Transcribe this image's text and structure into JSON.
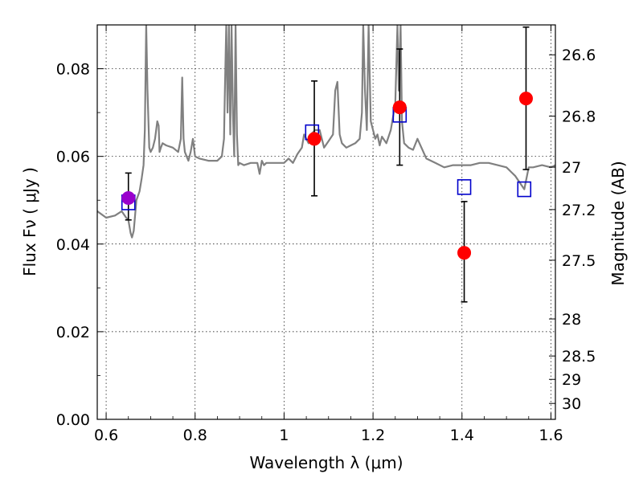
{
  "chart_data": {
    "type": "scatter",
    "title": "",
    "xlabel": "Wavelength  λ (μm)",
    "ylabel": "Flux  Fν  ( μJy )",
    "ylabel_right": "Magnitude (AB)",
    "xlim": [
      0.58,
      1.61
    ],
    "ylim": [
      0.0,
      0.09
    ],
    "grid": true,
    "x_ticks": [
      0.6,
      0.8,
      1.0,
      1.2,
      1.4,
      1.6
    ],
    "x_tick_labels": [
      "0.6",
      "0.8",
      "1",
      "1.2",
      "1.4",
      "1.6"
    ],
    "y_ticks": [
      0.0,
      0.02,
      0.04,
      0.06,
      0.08
    ],
    "y_tick_labels": [
      "0.00",
      "0.02",
      "0.04",
      "0.06",
      "0.08"
    ],
    "right_ticks": [
      {
        "mag": 26.6,
        "label": "26.6"
      },
      {
        "mag": 26.8,
        "label": "26.8"
      },
      {
        "mag": 27.0,
        "label": "27"
      },
      {
        "mag": 27.2,
        "label": "27.2"
      },
      {
        "mag": 27.5,
        "label": "27.5"
      },
      {
        "mag": 28.0,
        "label": "28"
      },
      {
        "mag": 28.5,
        "label": "28.5"
      },
      {
        "mag": 29.0,
        "label": "29"
      },
      {
        "mag": 30.0,
        "label": "30"
      }
    ],
    "colors": {
      "observed": "#ff0000",
      "model_box": "#0000cc",
      "spectrum": "#808080",
      "overlap": "#9900cc"
    },
    "series": [
      {
        "kind": "spectrum",
        "x": [
          0.58,
          0.6,
          0.62,
          0.635,
          0.645,
          0.65,
          0.655,
          0.658,
          0.662,
          0.668,
          0.675,
          0.68,
          0.684,
          0.687,
          0.69,
          0.693,
          0.697,
          0.7,
          0.705,
          0.71,
          0.715,
          0.718,
          0.72,
          0.723,
          0.727,
          0.735,
          0.75,
          0.762,
          0.768,
          0.771,
          0.774,
          0.777,
          0.785,
          0.79,
          0.795,
          0.8,
          0.81,
          0.83,
          0.85,
          0.86,
          0.865,
          0.867,
          0.87,
          0.873,
          0.876,
          0.879,
          0.882,
          0.885,
          0.888,
          0.891,
          0.894,
          0.897,
          0.9,
          0.91,
          0.925,
          0.94,
          0.945,
          0.95,
          0.955,
          0.96,
          0.98,
          1.0,
          1.01,
          1.02,
          1.03,
          1.04,
          1.045,
          1.05,
          1.055,
          1.06,
          1.07,
          1.08,
          1.09,
          1.1,
          1.11,
          1.115,
          1.12,
          1.125,
          1.13,
          1.14,
          1.15,
          1.16,
          1.17,
          1.175,
          1.178,
          1.182,
          1.186,
          1.19,
          1.195,
          1.2,
          1.205,
          1.21,
          1.215,
          1.22,
          1.23,
          1.24,
          1.25,
          1.255,
          1.258,
          1.262,
          1.265,
          1.27,
          1.28,
          1.29,
          1.3,
          1.32,
          1.34,
          1.36,
          1.38,
          1.4,
          1.42,
          1.44,
          1.46,
          1.48,
          1.5,
          1.52,
          1.53,
          1.54,
          1.55,
          1.56,
          1.58,
          1.6,
          1.61
        ],
        "y": [
          0.0475,
          0.046,
          0.0465,
          0.0475,
          0.046,
          0.0455,
          0.0425,
          0.0415,
          0.043,
          0.05,
          0.052,
          0.055,
          0.058,
          0.066,
          0.09,
          0.075,
          0.062,
          0.061,
          0.062,
          0.064,
          0.068,
          0.067,
          0.061,
          0.062,
          0.063,
          0.0625,
          0.062,
          0.061,
          0.064,
          0.078,
          0.064,
          0.061,
          0.059,
          0.061,
          0.064,
          0.06,
          0.0595,
          0.059,
          0.059,
          0.06,
          0.064,
          0.075,
          0.09,
          0.07,
          0.09,
          0.065,
          0.09,
          0.07,
          0.06,
          0.09,
          0.065,
          0.058,
          0.0585,
          0.058,
          0.0585,
          0.0585,
          0.056,
          0.059,
          0.058,
          0.0585,
          0.0585,
          0.0585,
          0.0595,
          0.0585,
          0.0605,
          0.062,
          0.065,
          0.064,
          0.063,
          0.065,
          0.066,
          0.066,
          0.062,
          0.0635,
          0.065,
          0.075,
          0.077,
          0.065,
          0.063,
          0.062,
          0.0625,
          0.063,
          0.064,
          0.07,
          0.09,
          0.075,
          0.066,
          0.09,
          0.068,
          0.066,
          0.064,
          0.065,
          0.0625,
          0.0645,
          0.063,
          0.066,
          0.072,
          0.09,
          0.075,
          0.09,
          0.068,
          0.063,
          0.062,
          0.0615,
          0.064,
          0.0595,
          0.0585,
          0.0575,
          0.058,
          0.058,
          0.058,
          0.0585,
          0.0585,
          0.058,
          0.0575,
          0.0555,
          0.054,
          0.0525,
          0.0575,
          0.0575,
          0.058,
          0.0575,
          0.058
        ]
      },
      {
        "name": "",
        "kind": "observed",
        "x": [
          0.65,
          1.068,
          1.26,
          1.405,
          1.544
        ],
        "y": [
          0.0505,
          0.064,
          0.0712,
          0.038,
          0.0732
        ],
        "yerr_low": [
          0.0455,
          0.051,
          0.058,
          0.0268,
          0.057
        ],
        "yerr_high": [
          0.0562,
          0.0772,
          0.0845,
          0.0497,
          0.0895
        ]
      },
      {
        "name": "",
        "kind": "model",
        "x": [
          0.65,
          1.063,
          1.26,
          1.405,
          1.54
        ],
        "y": [
          0.0495,
          0.0655,
          0.0695,
          0.053,
          0.0525
        ]
      }
    ]
  }
}
